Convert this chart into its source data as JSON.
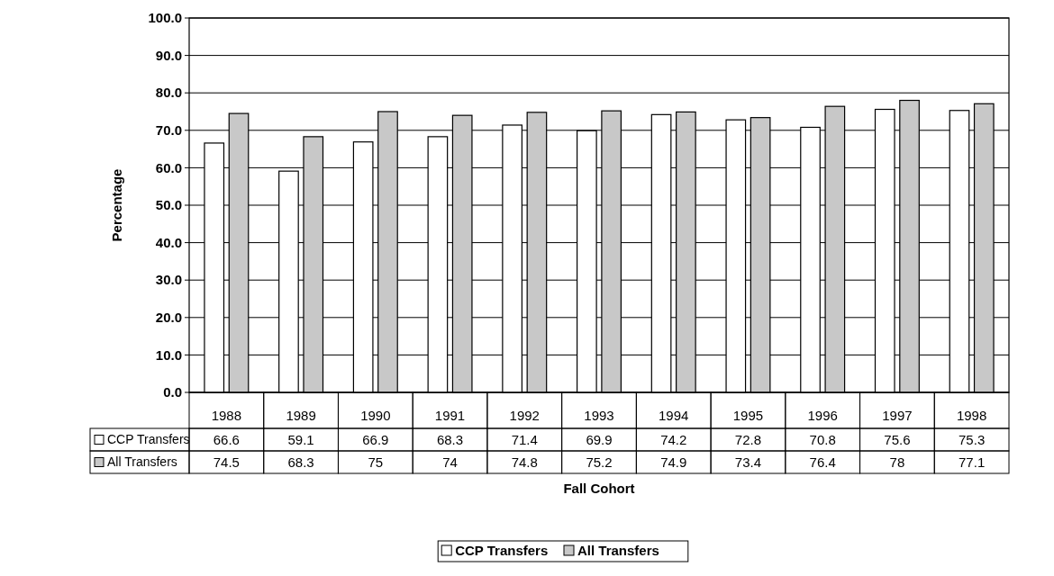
{
  "chart_data": {
    "type": "bar",
    "xlabel": "Fall Cohort",
    "ylabel": "Percentage",
    "categories": [
      "1988",
      "1989",
      "1990",
      "1991",
      "1992",
      "1993",
      "1994",
      "1995",
      "1996",
      "1997",
      "1998"
    ],
    "series": [
      {
        "name": "CCP Transfers",
        "color": "#ffffff",
        "values": [
          66.6,
          59.1,
          66.9,
          68.3,
          71.4,
          69.9,
          74.2,
          72.8,
          70.8,
          75.6,
          75.3
        ]
      },
      {
        "name": "All Transfers",
        "color": "#c8c8c8",
        "values": [
          74.5,
          68.3,
          75,
          74,
          74.8,
          75.2,
          74.9,
          73.4,
          76.4,
          78,
          77.1
        ]
      }
    ],
    "ylim": [
      0,
      100
    ],
    "yticks": [
      {
        "value": 0,
        "label": "0.0"
      },
      {
        "value": 10,
        "label": "10.0"
      },
      {
        "value": 20,
        "label": "20.0"
      },
      {
        "value": 30,
        "label": "30.0"
      },
      {
        "value": 40,
        "label": "40.0"
      },
      {
        "value": 50,
        "label": "50.0"
      },
      {
        "value": 60,
        "label": "60.0"
      },
      {
        "value": 70,
        "label": "70.0"
      },
      {
        "value": 80,
        "label": "80.0"
      },
      {
        "value": 90,
        "label": "90.0"
      },
      {
        "value": 100,
        "label": "100.0"
      }
    ],
    "grid": "y",
    "legend": "bottom",
    "data_labels": true
  }
}
